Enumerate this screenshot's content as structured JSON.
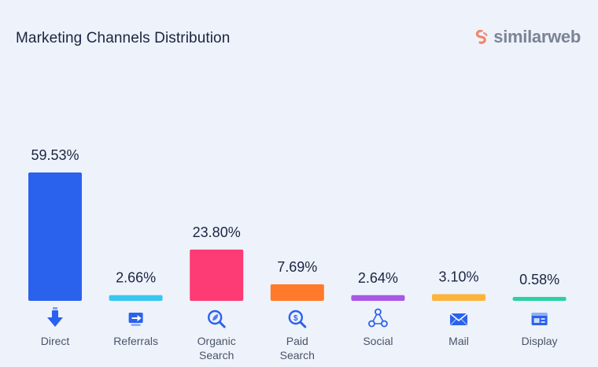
{
  "header": {
    "title": "Marketing Channels Distribution",
    "brand": "similarweb"
  },
  "chart_data": {
    "type": "bar",
    "title": "Marketing Channels Distribution",
    "categories": [
      "Direct",
      "Referrals",
      "Organic Search",
      "Paid Search",
      "Social",
      "Mail",
      "Display"
    ],
    "category_lines": [
      [
        "Direct"
      ],
      [
        "Referrals"
      ],
      [
        "Organic",
        "Search"
      ],
      [
        "Paid",
        "Search"
      ],
      [
        "Social"
      ],
      [
        "Mail"
      ],
      [
        "Display"
      ]
    ],
    "values": [
      59.53,
      2.66,
      23.8,
      7.69,
      2.64,
      3.1,
      0.58
    ],
    "value_labels": [
      "59.53%",
      "2.66%",
      "23.80%",
      "7.69%",
      "2.64%",
      "3.10%",
      "0.58%"
    ],
    "colors": [
      "#2a62ee",
      "#37c8f0",
      "#fd3b74",
      "#ff7a2a",
      "#a957e6",
      "#fcb43a",
      "#2cd0a6"
    ],
    "icons": [
      "arrow-down-icon",
      "referral-icon",
      "magnifier-leaf-icon",
      "magnifier-dollar-icon",
      "share-network-icon",
      "envelope-icon",
      "display-ad-icon"
    ],
    "ylim": [
      0,
      60
    ],
    "grid": false,
    "legend": "none"
  }
}
